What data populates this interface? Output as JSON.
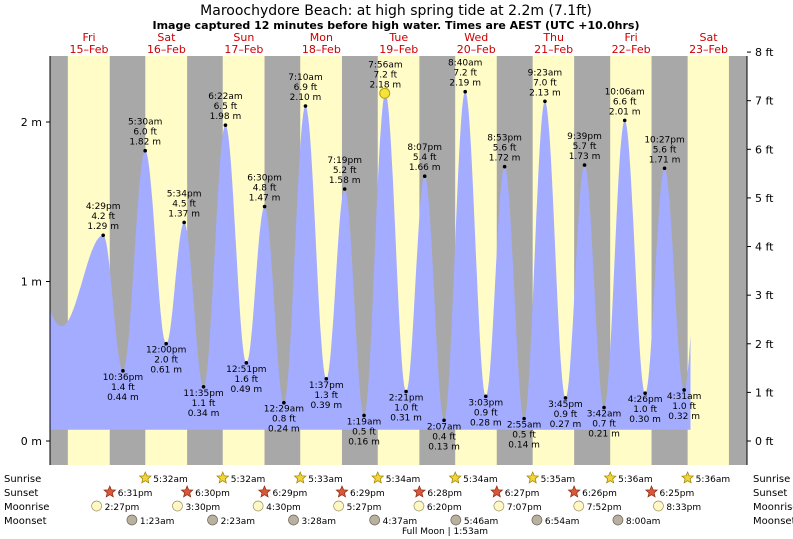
{
  "chart_data": {
    "type": "area",
    "title": "Maroochydore Beach: at high  spring tide at 2.2m (7.1ft)",
    "subtitle": "Image captured 12 minutes before high water. Times are AEST (UTC +10.0hrs)",
    "y_left_unit": "m",
    "y_right_unit": "ft",
    "y_left_ticks": [
      "0 m",
      "1 m",
      "2 m"
    ],
    "y_right_ticks": [
      "0 ft",
      "1 ft",
      "2 ft",
      "3 ft",
      "4 ft",
      "5 ft",
      "6 ft",
      "7 ft",
      "8 ft"
    ],
    "ylim_m": [
      0,
      2.44
    ],
    "xlim_hours": [
      0,
      216
    ],
    "days": [
      {
        "dow": "Fri",
        "date": "15–Feb",
        "start_h": 0
      },
      {
        "dow": "Sat",
        "date": "16–Feb",
        "start_h": 24
      },
      {
        "dow": "Sun",
        "date": "17–Feb",
        "start_h": 48
      },
      {
        "dow": "Mon",
        "date": "18–Feb",
        "start_h": 72
      },
      {
        "dow": "Tue",
        "date": "19–Feb",
        "start_h": 96
      },
      {
        "dow": "Wed",
        "date": "20–Feb",
        "start_h": 120
      },
      {
        "dow": "Thu",
        "date": "21–Feb",
        "start_h": 144
      },
      {
        "dow": "Fri",
        "date": "22–Feb",
        "start_h": 168
      },
      {
        "dow": "Sat",
        "date": "23–Feb",
        "start_h": 192
      }
    ],
    "tides": [
      {
        "type": "high",
        "h": 16.48,
        "time": "4:29 pm",
        "ft": "4.2 ft",
        "m": 1.29
      },
      {
        "type": "low",
        "h": 22.6,
        "time": "10:36 pm",
        "ft": "1.4 ft",
        "m": 0.44
      },
      {
        "type": "high",
        "h": 29.5,
        "time": "5:30 am",
        "ft": "6.0 ft",
        "m": 1.82
      },
      {
        "type": "low",
        "h": 36.0,
        "time": "12:00 pm",
        "ft": "2.0 ft",
        "m": 0.61
      },
      {
        "type": "high",
        "h": 41.57,
        "time": "5:34 pm",
        "ft": "4.5 ft",
        "m": 1.37
      },
      {
        "type": "low",
        "h": 47.58,
        "time": "11:35 pm",
        "ft": "1.1 ft",
        "m": 0.34
      },
      {
        "type": "high",
        "h": 54.37,
        "time": "6:22 am",
        "ft": "6.5 ft",
        "m": 1.98
      },
      {
        "type": "low",
        "h": 60.85,
        "time": "12:51 pm",
        "ft": "1.6 ft",
        "m": 0.49
      },
      {
        "type": "high",
        "h": 66.5,
        "time": "6:30 pm",
        "ft": "4.8 ft",
        "m": 1.47
      },
      {
        "type": "low",
        "h": 72.48,
        "time": "12:29 am",
        "ft": "0.8 ft",
        "m": 0.24
      },
      {
        "type": "high",
        "h": 79.17,
        "time": "7:10 am",
        "ft": "6.9 ft",
        "m": 2.1
      },
      {
        "type": "low",
        "h": 85.62,
        "time": "1:37 pm",
        "ft": "1.3 ft",
        "m": 0.39
      },
      {
        "type": "high",
        "h": 91.32,
        "time": "7:19 pm",
        "ft": "5.2 ft",
        "m": 1.58
      },
      {
        "type": "low",
        "h": 97.32,
        "time": "1:19 am",
        "ft": "0.5 ft",
        "m": 0.16
      },
      {
        "type": "high",
        "h": 103.93,
        "time": "7:56 am",
        "ft": "7.2 ft",
        "m": 2.18
      },
      {
        "type": "low",
        "h": 110.35,
        "time": "2:21 pm",
        "ft": "1.0 ft",
        "m": 0.31
      },
      {
        "type": "high",
        "h": 116.12,
        "time": "8:07 pm",
        "ft": "5.4 ft",
        "m": 1.66
      },
      {
        "type": "low",
        "h": 122.12,
        "time": "2:07 am",
        "ft": "0.4 ft",
        "m": 0.13
      },
      {
        "type": "high",
        "h": 128.67,
        "time": "8:40 am",
        "ft": "7.2 ft",
        "m": 2.19
      },
      {
        "type": "low",
        "h": 135.05,
        "time": "3:03 pm",
        "ft": "0.9 ft",
        "m": 0.28
      },
      {
        "type": "high",
        "h": 140.88,
        "time": "8:53 pm",
        "ft": "5.6 ft",
        "m": 1.72
      },
      {
        "type": "low",
        "h": 146.92,
        "time": "2:55 am",
        "ft": "0.5 ft",
        "m": 0.14
      },
      {
        "type": "high",
        "h": 153.38,
        "time": "9:23 am",
        "ft": "7.0 ft",
        "m": 2.13
      },
      {
        "type": "low",
        "h": 159.75,
        "time": "3:45 pm",
        "ft": "0.9 ft",
        "m": 0.27
      },
      {
        "type": "high",
        "h": 165.65,
        "time": "9:39 pm",
        "ft": "5.7 ft",
        "m": 1.73
      },
      {
        "type": "low",
        "h": 171.7,
        "time": "3:42 am",
        "ft": "0.7 ft",
        "m": 0.21
      },
      {
        "type": "high",
        "h": 178.1,
        "time": "10:06 am",
        "ft": "6.6 ft",
        "m": 2.01
      },
      {
        "type": "low",
        "h": 184.43,
        "time": "4:26 pm",
        "ft": "1.0 ft",
        "m": 0.3
      },
      {
        "type": "high",
        "h": 190.45,
        "time": "10:27 pm",
        "ft": "5.6 ft",
        "m": 1.71
      },
      {
        "type": "low",
        "h": 196.52,
        "time": "4:31 am",
        "ft": "1.0 ft",
        "m": 0.32
      }
    ],
    "current": {
      "h": 103.73,
      "m": 2.18
    },
    "night_periods": [
      [
        -5.5,
        5.53
      ],
      [
        18.52,
        29.53
      ],
      [
        42.5,
        53.53
      ],
      [
        66.48,
        77.55
      ],
      [
        90.48,
        101.57
      ],
      [
        114.47,
        125.57
      ],
      [
        138.45,
        149.58
      ],
      [
        162.43,
        173.6
      ],
      [
        186.42,
        197.6
      ],
      [
        210.4,
        221.6
      ]
    ],
    "sunrise": [
      "5:32am",
      "5:32am",
      "5:33am",
      "5:34am",
      "5:34am",
      "5:35am",
      "5:36am",
      "5:36am"
    ],
    "sunset": [
      "6:31pm",
      "6:30pm",
      "6:29pm",
      "6:29pm",
      "6:28pm",
      "6:27pm",
      "6:26pm",
      "6:25pm"
    ],
    "moonrise": [
      "2:27pm",
      "3:30pm",
      "4:30pm",
      "5:27pm",
      "6:20pm",
      "7:07pm",
      "7:52pm",
      "8:33pm"
    ],
    "moonset": [
      "1:23am",
      "2:23am",
      "3:28am",
      "4:37am",
      "5:46am",
      "6:54am",
      "8:00am"
    ],
    "row_labels": {
      "sunrise": "Sunrise",
      "sunset": "Sunset",
      "moonrise": "Moonrise",
      "moonset": "Moonset"
    },
    "moon_phase": "Full Moon | 1:53am",
    "colors": {
      "day": "#fffcc8",
      "night": "#a8a8a8",
      "water": "#a3acff",
      "sun": "#f2d33a",
      "sunset": "#d9583b",
      "moonrise": "#fff7c4",
      "moonset": "#b8b0a0"
    }
  }
}
